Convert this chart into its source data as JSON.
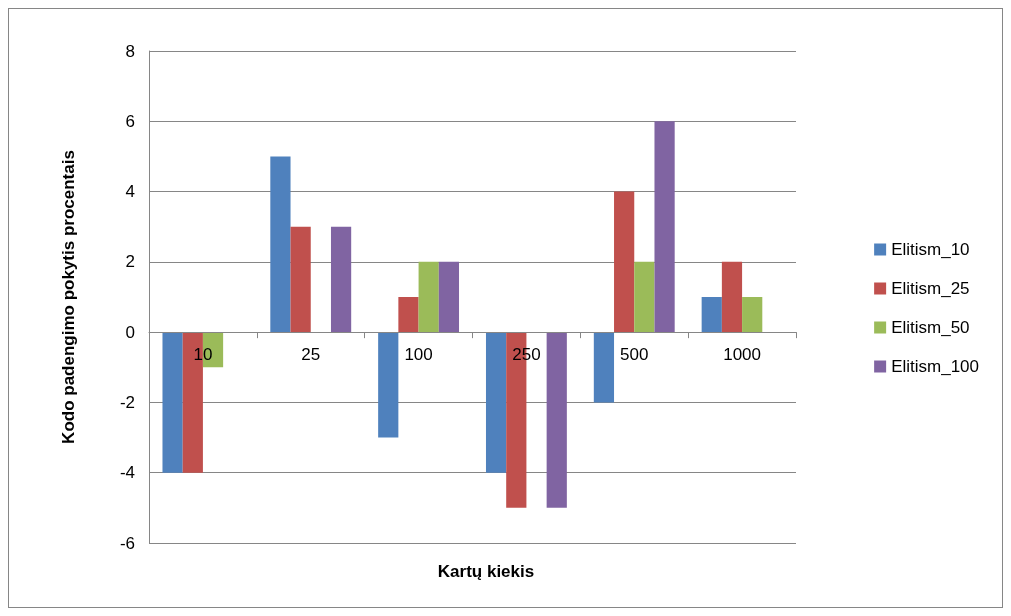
{
  "chart_data": {
    "type": "bar",
    "xlabel": "Kartų kiekis",
    "ylabel": "Kodo padengimo pokytis procentais",
    "categories": [
      "10",
      "25",
      "100",
      "250",
      "500",
      "1000"
    ],
    "series": [
      {
        "name": "Elitism_10",
        "color": "#4f81bd",
        "values": [
          -4,
          5,
          -3,
          -4,
          -2,
          1
        ]
      },
      {
        "name": "Elitism_25",
        "color": "#c0504d",
        "values": [
          -4,
          3,
          1,
          -5,
          4,
          2
        ]
      },
      {
        "name": "Elitism_50",
        "color": "#9bbb59",
        "values": [
          -1,
          0,
          2,
          0,
          2,
          1
        ]
      },
      {
        "name": "Elitism_100",
        "color": "#8064a2",
        "values": [
          0,
          3,
          2,
          -5,
          6,
          0
        ]
      }
    ],
    "ylim": [
      -6,
      8
    ],
    "yticks": [
      -6,
      -4,
      -2,
      0,
      2,
      4,
      6,
      8
    ],
    "grid": "y",
    "legend": "right"
  }
}
